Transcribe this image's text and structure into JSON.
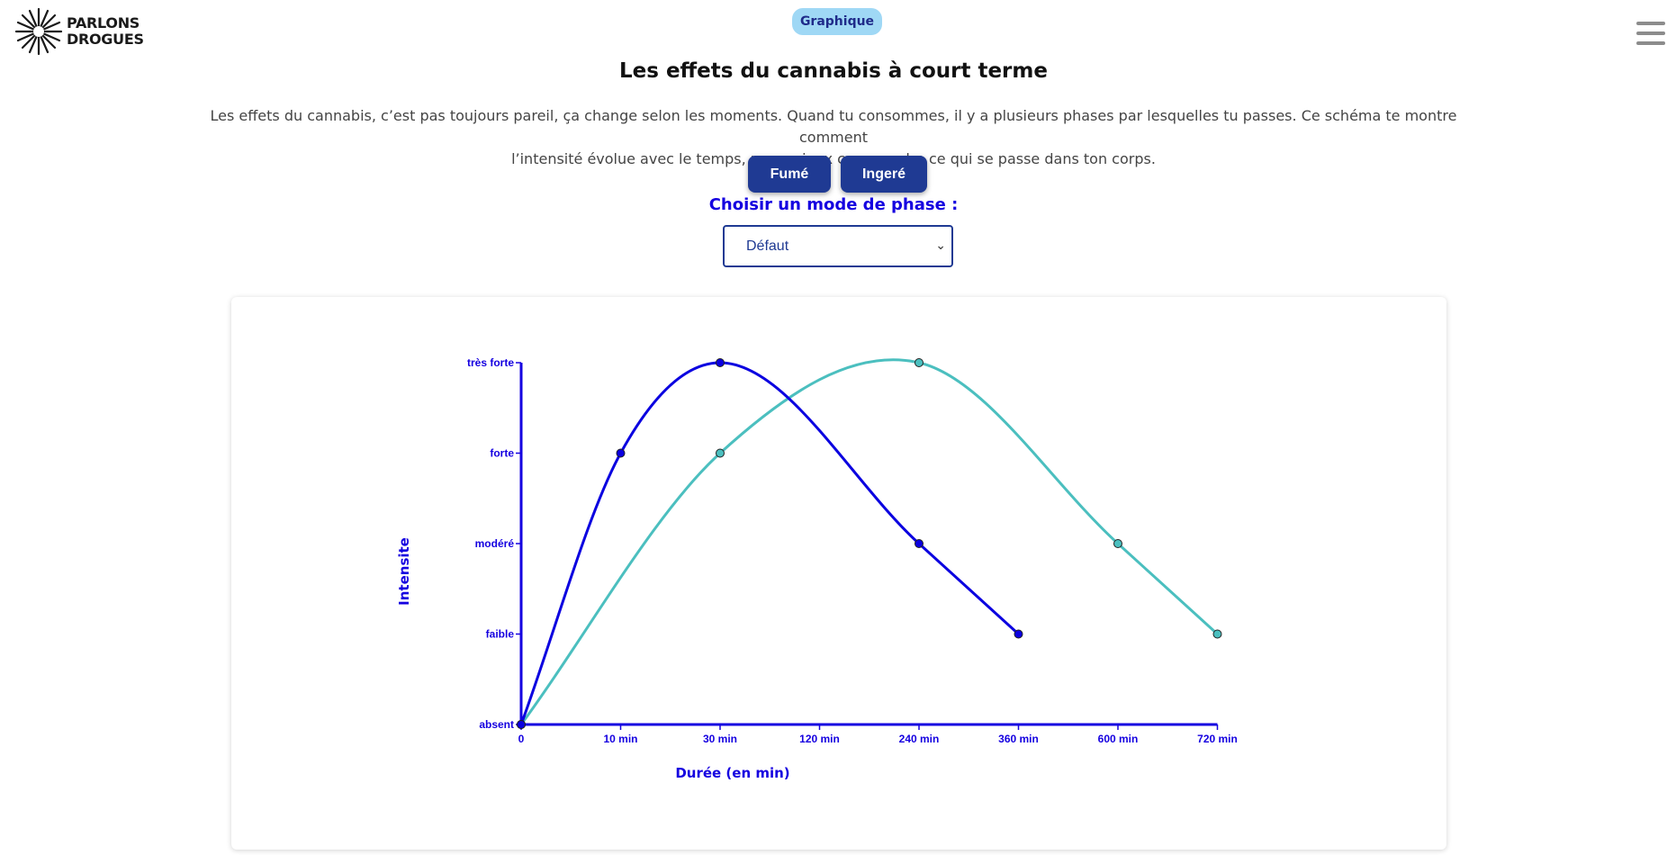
{
  "header": {
    "logo_line1": "PARLONS",
    "logo_line2": "DROGUES",
    "badge": "Graphique",
    "menu_icon": "hamburger-icon"
  },
  "main": {
    "title": "Les effets du cannabis à court terme",
    "intro_line1": "Les effets du cannabis, c’est pas toujours pareil, ça change selon les moments. Quand tu consommes, il y a plusieurs phases par lesquelles tu passes. Ce schéma te montre comment",
    "intro_line2": "l’intensité évolue avec le temps, pour mieux comprendre ce qui se passe dans ton corps.",
    "buttons": {
      "fume": "Fumé",
      "ingere": "Ingeré"
    },
    "phase_label": "Choisir un mode de phase :",
    "phase_select": {
      "value": "Défaut",
      "caret_icon": "chevron-down-icon"
    }
  },
  "colors": {
    "fume": "#0b00e0",
    "ingere": "#4bbfbf",
    "accent": "#1500e0",
    "button": "#1f3a93"
  },
  "chart_data": {
    "type": "line",
    "xlabel": "Durée (en min)",
    "ylabel": "Intensite",
    "x_ticks": [
      "0",
      "10 min",
      "30 min",
      "120 min",
      "240 min",
      "360 min",
      "600 min",
      "720 min"
    ],
    "y_ticks": [
      "absent",
      "faible",
      "modéré",
      "forte",
      "très forte"
    ],
    "series": [
      {
        "key": "fume",
        "color": "#0b00e0",
        "points": [
          {
            "x": "0",
            "y": "absent"
          },
          {
            "x": "10 min",
            "y": "forte"
          },
          {
            "x": "30 min",
            "y": "très forte"
          },
          {
            "x": "240 min",
            "y": "modéré"
          },
          {
            "x": "360 min",
            "y": "faible"
          }
        ]
      },
      {
        "key": "ingere",
        "color": "#4bbfbf",
        "points": [
          {
            "x": "0",
            "y": "absent"
          },
          {
            "x": "30 min",
            "y": "forte"
          },
          {
            "x": "240 min",
            "y": "très forte"
          },
          {
            "x": "600 min",
            "y": "modéré"
          },
          {
            "x": "720 min",
            "y": "faible"
          }
        ]
      }
    ]
  }
}
